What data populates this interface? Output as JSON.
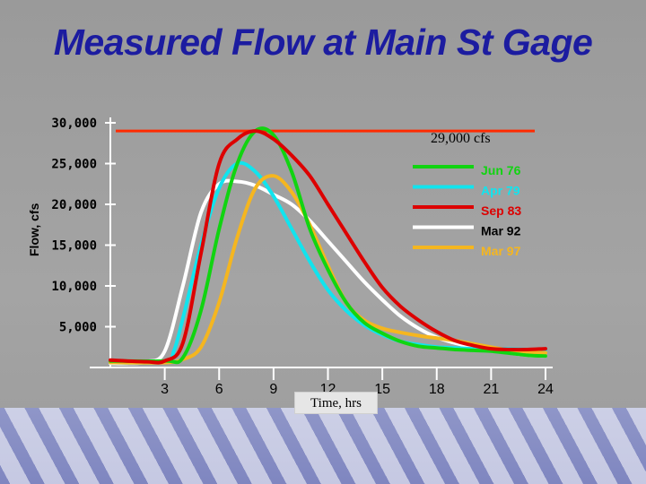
{
  "title": "Measured Flow at Main St Gage",
  "chart_data": {
    "type": "line",
    "title": "Measured Flow at Main St Gage",
    "xlabel": "Time, hrs",
    "ylabel": "Flow, cfs",
    "xlim": [
      0,
      24
    ],
    "ylim": [
      0,
      30000
    ],
    "xticks": [
      "3",
      "6",
      "9",
      "12",
      "15",
      "18",
      "21",
      "24"
    ],
    "yticks": [
      "5,000",
      "10,000",
      "15,000",
      "20,000",
      "25,000",
      "30,000"
    ],
    "legend_position": "right",
    "annotations": [
      {
        "text": "29,000 cfs",
        "y": 29000,
        "color": "#ff2a00",
        "x_start": 0,
        "x_end": 24
      }
    ],
    "series": [
      {
        "name": "Jun 76",
        "color": "#11d411",
        "points": [
          [
            0,
            800
          ],
          [
            3,
            800
          ],
          [
            4,
            1200
          ],
          [
            5,
            7000
          ],
          [
            6,
            17000
          ],
          [
            7,
            25000
          ],
          [
            8,
            29000
          ],
          [
            9,
            28500
          ],
          [
            10,
            24000
          ],
          [
            11,
            17000
          ],
          [
            12,
            12000
          ],
          [
            13,
            8000
          ],
          [
            14,
            5500
          ],
          [
            15,
            4200
          ],
          [
            16,
            3200
          ],
          [
            17,
            2600
          ],
          [
            18,
            2400
          ],
          [
            19,
            2200
          ],
          [
            20,
            2100
          ],
          [
            21,
            2000
          ],
          [
            23,
            1500
          ],
          [
            24,
            1400
          ]
        ]
      },
      {
        "name": "Apr 79",
        "color": "#11e4ee",
        "points": [
          [
            0,
            600
          ],
          [
            3,
            700
          ],
          [
            3.5,
            2000
          ],
          [
            4,
            6000
          ],
          [
            5,
            15000
          ],
          [
            6,
            22000
          ],
          [
            7,
            25000
          ],
          [
            8,
            24000
          ],
          [
            9,
            21000
          ],
          [
            10,
            17000
          ],
          [
            11,
            13000
          ],
          [
            12,
            9500
          ],
          [
            13,
            7000
          ],
          [
            14,
            5200
          ],
          [
            15,
            4000
          ],
          [
            16,
            3200
          ],
          [
            17,
            2800
          ],
          [
            18,
            2500
          ],
          [
            19,
            2400
          ],
          [
            20,
            2300
          ],
          [
            21,
            2300
          ],
          [
            23,
            2200
          ],
          [
            24,
            2200
          ]
        ]
      },
      {
        "name": "Sep 83",
        "color": "#dd0000",
        "points": [
          [
            0,
            900
          ],
          [
            2,
            700
          ],
          [
            3,
            800
          ],
          [
            4,
            3000
          ],
          [
            5,
            14000
          ],
          [
            6,
            25000
          ],
          [
            7,
            28000
          ],
          [
            8,
            29000
          ],
          [
            9,
            28000
          ],
          [
            10,
            26000
          ],
          [
            11,
            23500
          ],
          [
            12,
            20000
          ],
          [
            13,
            16500
          ],
          [
            14,
            13000
          ],
          [
            15,
            9800
          ],
          [
            16,
            7500
          ],
          [
            17,
            5800
          ],
          [
            18,
            4400
          ],
          [
            19,
            3300
          ],
          [
            20,
            2700
          ],
          [
            21,
            2300
          ],
          [
            22,
            2200
          ],
          [
            23,
            2200
          ],
          [
            24,
            2300
          ]
        ]
      },
      {
        "name": "Mar 92",
        "color": "#ffffff",
        "points": [
          [
            0,
            500
          ],
          [
            1,
            500
          ],
          [
            2,
            700
          ],
          [
            3,
            2000
          ],
          [
            4,
            10000
          ],
          [
            5,
            19000
          ],
          [
            6,
            22500
          ],
          [
            7,
            22800
          ],
          [
            8,
            22300
          ],
          [
            9,
            21200
          ],
          [
            10,
            20000
          ],
          [
            11,
            18000
          ],
          [
            12,
            15500
          ],
          [
            13,
            13000
          ],
          [
            14,
            10500
          ],
          [
            15,
            8300
          ],
          [
            16,
            6300
          ],
          [
            17,
            4800
          ],
          [
            18,
            3700
          ],
          [
            19,
            3000
          ],
          [
            20,
            2500
          ],
          [
            21,
            2200
          ],
          [
            22,
            1800
          ],
          [
            23,
            1500
          ],
          [
            24,
            1400
          ]
        ]
      },
      {
        "name": "Mar 97",
        "color": "#f5b61f",
        "points": [
          [
            0,
            600
          ],
          [
            3,
            600
          ],
          [
            4,
            1000
          ],
          [
            5,
            2500
          ],
          [
            6,
            8000
          ],
          [
            7,
            16000
          ],
          [
            8,
            22000
          ],
          [
            9,
            23500
          ],
          [
            10,
            21500
          ],
          [
            11,
            17500
          ],
          [
            12,
            12500
          ],
          [
            13,
            8000
          ],
          [
            14,
            5800
          ],
          [
            15,
            4800
          ],
          [
            16,
            4300
          ],
          [
            17,
            3900
          ],
          [
            18,
            3600
          ],
          [
            19,
            3300
          ],
          [
            20,
            2900
          ],
          [
            21,
            2500
          ],
          [
            22,
            2100
          ],
          [
            23,
            1900
          ],
          [
            24,
            1800
          ]
        ]
      }
    ]
  },
  "colors": {
    "title": "#1c1ca0",
    "axis": "#ffffff",
    "floor": "#8890c8"
  }
}
